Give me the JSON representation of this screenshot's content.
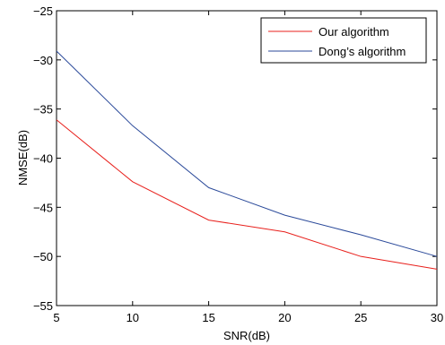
{
  "chart_data": {
    "type": "line",
    "title": "",
    "xlabel": "SNR(dB)",
    "ylabel": "NMSE(dB)",
    "xlim": [
      5,
      30
    ],
    "ylim": [
      -55,
      -25
    ],
    "xticks": [
      5,
      10,
      15,
      20,
      25,
      30
    ],
    "yticks": [
      -55,
      -50,
      -45,
      -40,
      -35,
      -30,
      -25
    ],
    "xtick_labels": [
      "5",
      "10",
      "15",
      "20",
      "25",
      "30"
    ],
    "ytick_labels": [
      "−55",
      "−50",
      "−45",
      "−40",
      "−35",
      "−30",
      "−25"
    ],
    "grid": false,
    "legend_position": "top-right",
    "x": [
      5,
      10,
      15,
      20,
      25,
      30
    ],
    "series": [
      {
        "name": "Our algorithm",
        "color": "#e8201c",
        "values": [
          -36.1,
          -42.4,
          -46.3,
          -47.5,
          -50.0,
          -51.3
        ]
      },
      {
        "name": "Dong’s algorithm",
        "color": "#2b4a9a",
        "values": [
          -29.1,
          -36.7,
          -43.0,
          -45.8,
          -47.8,
          -50.0
        ]
      }
    ]
  }
}
